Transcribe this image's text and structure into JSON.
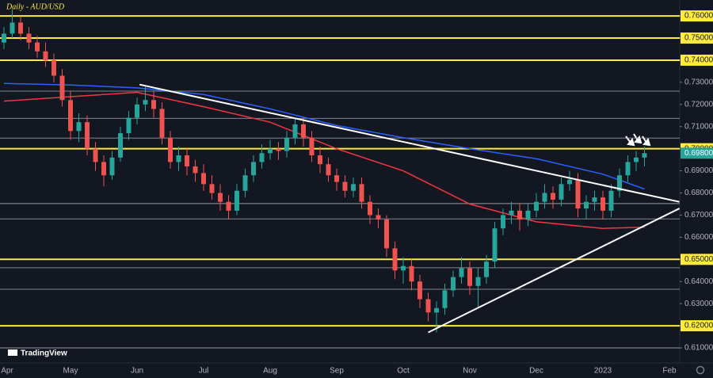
{
  "chart_data": {
    "type": "candlestick",
    "title": "Daily - AUD/USD",
    "brand": "TradingView",
    "background": "#131722",
    "up_color": "#26a69a",
    "down_color": "#ef5350",
    "categories": [
      "Apr",
      null,
      null,
      null,
      null,
      null,
      null,
      null,
      "May",
      null,
      null,
      null,
      null,
      null,
      null,
      null,
      "Jun",
      null,
      null,
      null,
      null,
      null,
      null,
      null,
      "Jul",
      null,
      null,
      null,
      null,
      null,
      null,
      null,
      "Aug",
      null,
      null,
      null,
      null,
      null,
      null,
      null,
      "Sep",
      null,
      null,
      null,
      null,
      null,
      null,
      null,
      "Oct",
      null,
      null,
      null,
      null,
      null,
      null,
      null,
      "Nov",
      null,
      null,
      null,
      null,
      null,
      null,
      null,
      "Dec",
      null,
      null,
      null,
      null,
      null,
      null,
      null,
      "2023",
      null,
      null,
      null,
      null,
      null,
      null,
      null,
      "Feb"
    ],
    "opens": [
      0.748,
      0.752,
      0.757,
      0.752,
      0.748,
      0.744,
      0.74,
      0.733,
      0.722,
      0.708,
      0.712,
      0.7,
      0.694,
      0.688,
      0.696,
      0.707,
      0.714,
      0.72,
      0.722,
      0.718,
      0.705,
      0.694,
      0.697,
      0.692,
      0.689,
      0.684,
      0.68,
      0.676,
      0.672,
      0.681,
      0.688,
      0.694,
      0.698,
      0.7,
      0.699,
      0.705,
      0.711,
      0.705,
      0.697,
      0.693,
      0.688,
      0.685,
      0.681,
      0.684,
      0.676,
      0.67,
      0.668,
      0.655,
      0.645,
      0.647,
      0.64,
      0.632,
      0.626,
      0.628,
      0.636,
      0.642,
      0.646,
      0.638,
      0.642,
      0.649,
      0.664,
      0.67,
      0.672,
      0.668,
      0.672,
      0.676,
      0.68,
      0.677,
      0.684,
      0.686,
      0.673,
      0.676,
      0.678,
      0.672,
      0.681,
      0.688,
      0.694,
      0.696,
      null,
      null,
      null
    ],
    "highs": [
      0.755,
      0.763,
      0.76,
      0.755,
      0.751,
      0.748,
      0.743,
      0.736,
      0.726,
      0.716,
      0.715,
      0.703,
      0.697,
      0.699,
      0.71,
      0.717,
      0.723,
      0.728,
      0.726,
      0.721,
      0.708,
      0.701,
      0.7,
      0.695,
      0.693,
      0.688,
      0.684,
      0.679,
      0.684,
      0.691,
      0.697,
      0.702,
      0.704,
      0.703,
      0.708,
      0.714,
      0.714,
      0.708,
      0.701,
      0.696,
      0.691,
      0.688,
      0.687,
      0.687,
      0.679,
      0.673,
      0.67,
      0.658,
      0.651,
      0.65,
      0.643,
      0.635,
      0.631,
      0.639,
      0.645,
      0.651,
      0.649,
      0.646,
      0.652,
      0.667,
      0.673,
      0.676,
      0.675,
      0.675,
      0.68,
      0.684,
      0.683,
      0.687,
      0.69,
      0.689,
      0.679,
      0.681,
      0.681,
      0.684,
      0.691,
      0.697,
      0.699,
      0.701,
      null,
      null,
      null
    ],
    "lows": [
      0.745,
      0.75,
      0.749,
      0.745,
      0.741,
      0.737,
      0.73,
      0.719,
      0.704,
      0.703,
      0.697,
      0.69,
      0.683,
      0.686,
      0.694,
      0.704,
      0.711,
      0.717,
      0.714,
      0.702,
      0.691,
      0.69,
      0.688,
      0.685,
      0.681,
      0.677,
      0.672,
      0.668,
      0.67,
      0.678,
      0.685,
      0.691,
      0.695,
      0.695,
      0.696,
      0.702,
      0.701,
      0.694,
      0.689,
      0.685,
      0.681,
      0.678,
      0.678,
      0.673,
      0.666,
      0.664,
      0.651,
      0.641,
      0.639,
      0.636,
      0.628,
      0.622,
      0.617,
      0.625,
      0.633,
      0.639,
      0.634,
      0.628,
      0.639,
      0.646,
      0.661,
      0.666,
      0.663,
      0.665,
      0.669,
      0.673,
      0.673,
      0.674,
      0.681,
      0.669,
      0.668,
      0.672,
      0.668,
      0.669,
      0.678,
      0.685,
      0.69,
      0.692,
      null,
      null,
      null
    ],
    "closes": [
      0.752,
      0.757,
      0.752,
      0.748,
      0.744,
      0.74,
      0.733,
      0.722,
      0.708,
      0.712,
      0.7,
      0.694,
      0.688,
      0.696,
      0.707,
      0.714,
      0.72,
      0.722,
      0.718,
      0.705,
      0.694,
      0.697,
      0.692,
      0.689,
      0.684,
      0.68,
      0.676,
      0.672,
      0.681,
      0.688,
      0.694,
      0.698,
      0.7,
      0.699,
      0.705,
      0.711,
      0.705,
      0.697,
      0.693,
      0.688,
      0.685,
      0.681,
      0.684,
      0.676,
      0.67,
      0.668,
      0.655,
      0.645,
      0.647,
      0.64,
      0.632,
      0.626,
      0.628,
      0.636,
      0.642,
      0.646,
      0.638,
      0.642,
      0.649,
      0.664,
      0.67,
      0.672,
      0.668,
      0.672,
      0.676,
      0.68,
      0.677,
      0.684,
      0.686,
      0.673,
      0.676,
      0.678,
      0.672,
      0.681,
      0.688,
      0.694,
      0.696,
      0.698,
      null,
      null,
      null
    ],
    "ylim": [
      0.6032,
      0.7672
    ],
    "yticks": [
      {
        "value": 0.76,
        "label": "0.76000"
      },
      {
        "value": 0.75,
        "label": "0.75000"
      },
      {
        "value": 0.74,
        "label": "0.74000"
      },
      {
        "value": 0.73,
        "label": "0.73000"
      },
      {
        "value": 0.72,
        "label": "0.72000"
      },
      {
        "value": 0.71,
        "label": "0.71000"
      },
      {
        "value": 0.7,
        "label": "0.70000"
      },
      {
        "value": 0.69,
        "label": "0.69000"
      },
      {
        "value": 0.68,
        "label": "0.68000"
      },
      {
        "value": 0.67,
        "label": "0.67000"
      },
      {
        "value": 0.66,
        "label": "0.66000"
      },
      {
        "value": 0.65,
        "label": "0.65000"
      },
      {
        "value": 0.64,
        "label": "0.64000"
      },
      {
        "value": 0.63,
        "label": "0.63000"
      },
      {
        "value": 0.62,
        "label": "0.62000"
      },
      {
        "value": 0.61,
        "label": "0.61000"
      }
    ],
    "levels": [
      {
        "value": 0.76,
        "color": "#ffeb3b"
      },
      {
        "value": 0.75,
        "color": "#ffeb3b"
      },
      {
        "value": 0.74,
        "color": "#ffeb3b"
      },
      {
        "value": 0.7,
        "color": "#ffeb3b"
      },
      {
        "value": 0.65,
        "color": "#ffeb3b"
      },
      {
        "value": 0.62,
        "color": "#ffeb3b"
      },
      {
        "value": 0.726,
        "color": "#b2b5be"
      },
      {
        "value": 0.7137,
        "color": "#b2b5be"
      },
      {
        "value": 0.7048,
        "color": "#b2b5be"
      },
      {
        "value": 0.6752,
        "color": "#d1d4dc"
      },
      {
        "value": 0.6683,
        "color": "#b2b5be"
      },
      {
        "value": 0.6462,
        "color": "#b2b5be"
      },
      {
        "value": 0.6365,
        "color": "#b2b5be"
      },
      {
        "value": 0.61,
        "color": "#d1d4dc"
      }
    ],
    "moving_averages": [
      {
        "color": "#2962ff",
        "x": [
          0,
          8,
          16,
          24,
          32,
          40,
          48,
          56,
          64,
          72,
          77
        ],
        "values": [
          0.7295,
          0.7288,
          0.7275,
          0.7245,
          0.718,
          0.7105,
          0.705,
          0.7,
          0.6955,
          0.6885,
          0.6818
        ]
      },
      {
        "color": "#f23645",
        "x": [
          0,
          8,
          16,
          24,
          32,
          40,
          48,
          56,
          64,
          72,
          77
        ],
        "values": [
          0.7215,
          0.7235,
          0.7255,
          0.719,
          0.712,
          0.7,
          0.69,
          0.675,
          0.667,
          0.664,
          0.6645
        ]
      }
    ],
    "trendlines": [
      {
        "color": "#ffffff",
        "x": [
          16.3,
          81.2
        ],
        "values": [
          0.729,
          0.676
        ]
      },
      {
        "color": "#ffffff",
        "x": [
          51,
          81.2
        ],
        "values": [
          0.617,
          0.673
        ]
      }
    ],
    "price_label": {
      "value": 0.698,
      "label": "0.69800",
      "color": "#26a69a"
    }
  }
}
